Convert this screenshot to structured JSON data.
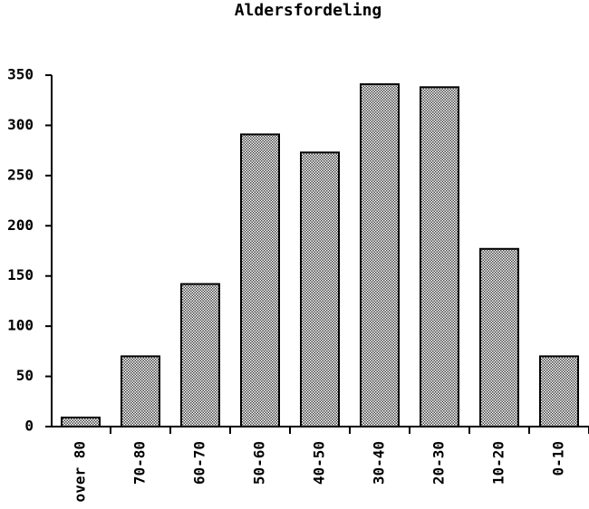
{
  "chart_data": {
    "type": "bar",
    "title": "Aldersfordeling",
    "categories": [
      "over 80",
      "70-80",
      "60-70",
      "50-60",
      "40-50",
      "30-40",
      "20-30",
      "10-20",
      "0-10"
    ],
    "values": [
      9,
      70,
      142,
      291,
      273,
      341,
      338,
      177,
      70
    ],
    "color": "#444",
    "ylim": [
      0,
      350
    ],
    "yticks": [
      0,
      50,
      100,
      150,
      200,
      250,
      300,
      350
    ]
  }
}
